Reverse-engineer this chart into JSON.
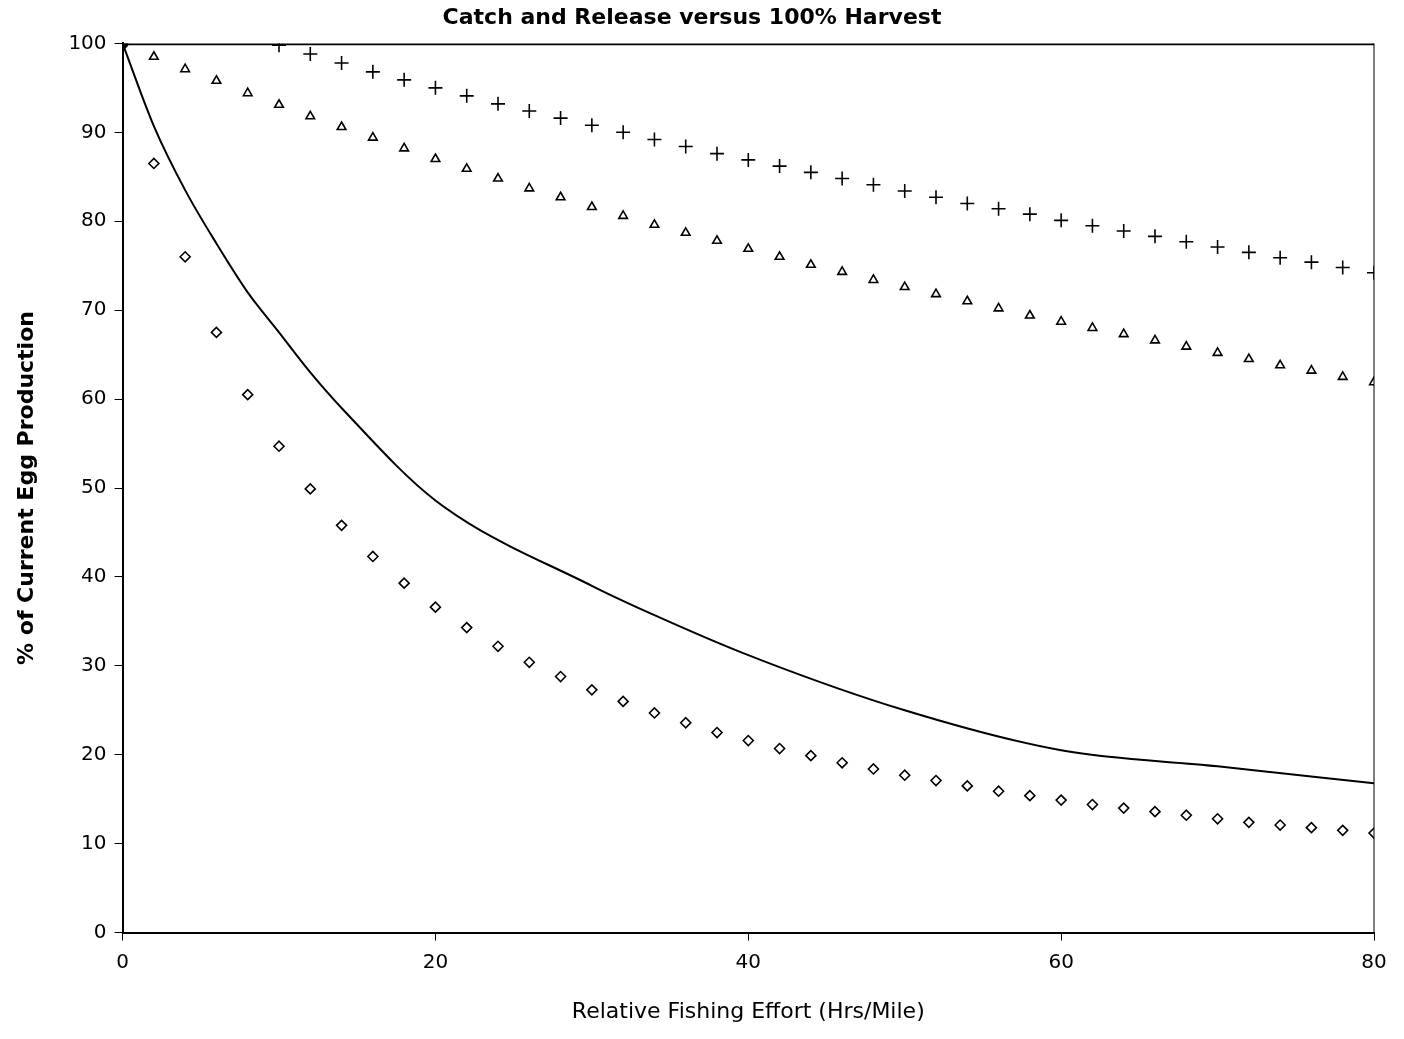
{
  "chart_data": {
    "type": "scatter",
    "title": "Catch and Release versus 100% Harvest",
    "xlabel": "Relative Fishing Effort (Hrs/Mile)",
    "ylabel": "% of Current Egg Production",
    "xlim": [
      0,
      80
    ],
    "xticks": [
      0,
      20,
      40,
      60,
      {
        "value": 80,
        "label": "80"
      }
    ],
    "ylim": [
      0,
      100
    ],
    "yticks": [
      0,
      10,
      20,
      30,
      40,
      50,
      60,
      70,
      80,
      90,
      100
    ],
    "grid": false,
    "legend": false,
    "series": [
      {
        "type": "line",
        "color": "#000000",
        "marker": "none",
        "line_style": "solid",
        "x": [
          0,
          80
        ],
        "values": [
          100,
          100
        ]
      },
      {
        "type": "line",
        "color": "#000000",
        "marker": "none",
        "line_style": "solid",
        "x": [
          0,
          2,
          4,
          6,
          8,
          10,
          12,
          14,
          20,
          30,
          34,
          40,
          50,
          60,
          70,
          80
        ],
        "values": [
          100,
          90.7,
          83.5,
          77.5,
          72,
          67.5,
          63,
          59,
          48.6,
          39,
          35.7,
          31.2,
          25,
          20.5,
          18.7,
          16.8
        ]
      },
      {
        "color": "#000000",
        "marker": "cross",
        "x": [
          10,
          12,
          14,
          16,
          18,
          20,
          22,
          24,
          26,
          28,
          30,
          32,
          34,
          36,
          38,
          40,
          42,
          44,
          46,
          48,
          50,
          52,
          54,
          56,
          58,
          60,
          62,
          64,
          66,
          68,
          70,
          72,
          74,
          76,
          78,
          80
        ],
        "values": [
          99.8,
          98.8,
          97.8,
          96.8,
          95.9,
          95,
          94.1,
          93.2,
          92.4,
          91.6,
          90.8,
          90,
          89.2,
          88.4,
          87.6,
          86.9,
          86.2,
          85.5,
          84.8,
          84.1,
          83.4,
          82.7,
          82,
          81.4,
          80.8,
          80.1,
          79.5,
          78.9,
          78.3,
          77.7,
          77.1,
          76.5,
          75.9,
          75.4,
          74.8,
          74.2
        ]
      },
      {
        "color": "#000000",
        "marker": "triangle",
        "x": [
          2,
          4,
          6,
          8,
          10,
          12,
          14,
          16,
          18,
          20,
          22,
          24,
          26,
          28,
          30,
          32,
          34,
          36,
          38,
          40,
          42,
          44,
          46,
          48,
          50,
          52,
          54,
          56,
          58,
          60,
          62,
          64,
          66,
          68,
          70,
          72,
          74,
          76,
          78,
          80
        ],
        "values": [
          98.5,
          97.1,
          95.8,
          94.4,
          93.1,
          91.8,
          90.6,
          89.4,
          88.2,
          87,
          85.9,
          84.8,
          83.7,
          82.7,
          81.6,
          80.6,
          79.6,
          78.7,
          77.8,
          76.9,
          76,
          75.1,
          74.3,
          73.4,
          72.6,
          71.8,
          71,
          70.2,
          69.4,
          68.7,
          68,
          67.3,
          66.6,
          65.9,
          65.2,
          64.5,
          63.8,
          63.2,
          62.5,
          61.9
        ]
      },
      {
        "color": "#000000",
        "marker": "diamond",
        "x": [
          2,
          4,
          6,
          8,
          10,
          12,
          14,
          16,
          18,
          20,
          22,
          24,
          26,
          28,
          30,
          32,
          34,
          36,
          38,
          40,
          42,
          44,
          46,
          48,
          50,
          52,
          54,
          56,
          58,
          60,
          62,
          64,
          66,
          68,
          70,
          72,
          74,
          76,
          78,
          80
        ],
        "values": [
          86.5,
          76,
          67.5,
          60.5,
          54.7,
          49.9,
          45.8,
          42.3,
          39.3,
          36.6,
          34.3,
          32.2,
          30.4,
          28.8,
          27.3,
          26,
          24.7,
          23.6,
          22.5,
          21.6,
          20.7,
          19.9,
          19.1,
          18.4,
          17.7,
          17.1,
          16.5,
          15.9,
          15.4,
          14.9,
          14.4,
          14,
          13.6,
          13.2,
          12.8,
          12.4,
          12.1,
          11.8,
          11.5,
          11.2
        ]
      },
      {
        "color": "#000000",
        "marker": "circle",
        "x": [
          0
        ],
        "values": [
          100
        ]
      }
    ]
  }
}
